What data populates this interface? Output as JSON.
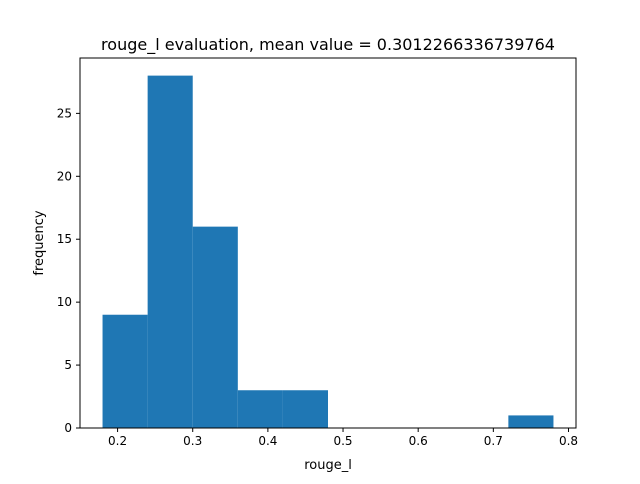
{
  "chart_data": {
    "type": "bar",
    "title": "rouge_l evaluation, mean value = 0.3012266336739764",
    "xlabel": "rouge_l",
    "ylabel": "frequency",
    "bin_edges": [
      0.18,
      0.24,
      0.3,
      0.36,
      0.42,
      0.48,
      0.54,
      0.6,
      0.66,
      0.72,
      0.78
    ],
    "values": [
      9,
      28,
      16,
      3,
      3,
      0,
      0,
      0,
      0,
      1
    ],
    "xlim": [
      0.15,
      0.81
    ],
    "ylim": [
      0,
      29.4
    ],
    "xticks": [
      0.2,
      0.3,
      0.4,
      0.5,
      0.6,
      0.7,
      0.8
    ],
    "xtick_labels": [
      "0.2",
      "0.3",
      "0.4",
      "0.5",
      "0.6",
      "0.7",
      "0.8"
    ],
    "yticks": [
      0,
      5,
      10,
      15,
      20,
      25
    ],
    "ytick_labels": [
      "0",
      "5",
      "10",
      "15",
      "20",
      "25"
    ],
    "bar_color": "#1f77b4",
    "grid": false,
    "legend": false
  }
}
